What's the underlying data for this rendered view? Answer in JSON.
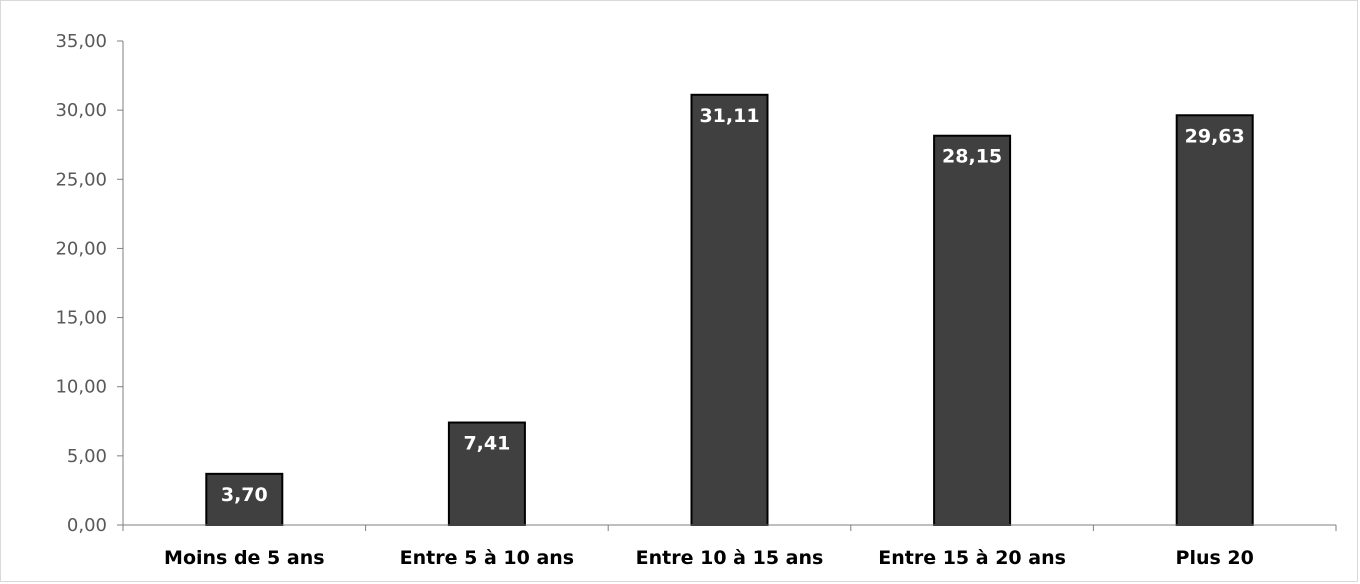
{
  "chart_data": {
    "type": "bar",
    "title": "",
    "xlabel": "",
    "ylabel": "",
    "categories": [
      "Moins de 5 ans",
      "Entre 5 à 10 ans",
      "Entre 10 à 15 ans",
      "Entre 15 à 20 ans",
      "Plus 20"
    ],
    "values": [
      3.7,
      7.41,
      31.11,
      28.15,
      29.63
    ],
    "value_labels": [
      "3,70",
      "7,41",
      "31,11",
      "28,15",
      "29,63"
    ],
    "ylim": [
      0,
      35
    ],
    "y_ticks": [
      0,
      5,
      10,
      15,
      20,
      25,
      30,
      35
    ],
    "y_tick_labels": [
      "0,00",
      "5,00",
      "10,00",
      "15,00",
      "20,00",
      "25,00",
      "30,00",
      "35,00"
    ],
    "grid": false,
    "legend": "none",
    "colors": {
      "bar_fill": "#404040",
      "bar_stroke": "#000000",
      "axis": "#7f7f7f",
      "data_label": "#ffffff"
    }
  }
}
